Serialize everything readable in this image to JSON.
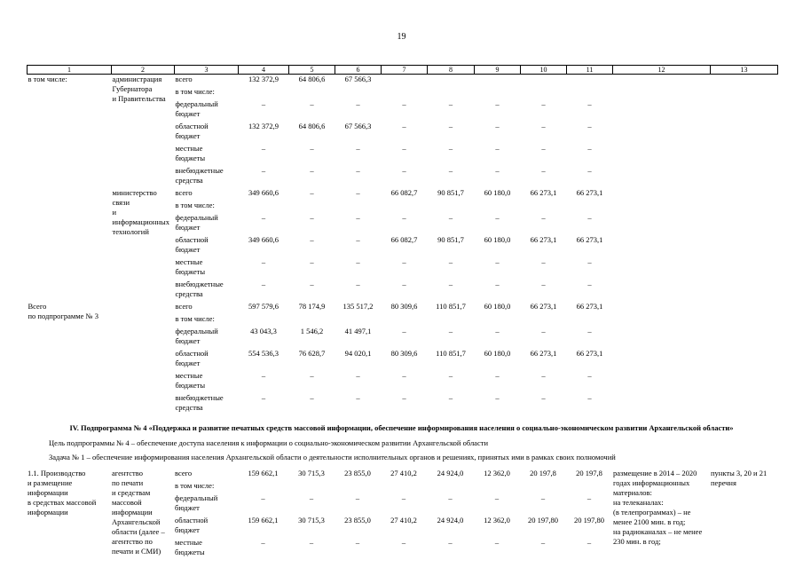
{
  "page_number": "19",
  "table": {
    "columns": [
      "1",
      "2",
      "3",
      "4",
      "5",
      "6",
      "7",
      "8",
      "9",
      "10",
      "11",
      "12",
      "13"
    ],
    "upper_blocks": [
      {
        "c1": "в том числе:",
        "c2": "администрация\nГубернатора\nи Правительства",
        "rows": [
          {
            "label": "всего",
            "values": [
              "132 372,9",
              "64 806,6",
              "67 566,3",
              "",
              "",
              "",
              "",
              ""
            ]
          },
          {
            "label": "в том числе:",
            "values": [
              "",
              "",
              "",
              "",
              "",
              "",
              "",
              ""
            ]
          },
          {
            "label": "федеральный\nбюджет",
            "values": [
              "–",
              "–",
              "–",
              "–",
              "–",
              "–",
              "–",
              "–"
            ]
          },
          {
            "label": "областной\nбюджет",
            "values": [
              "132 372,9",
              "64 806,6",
              "67 566,3",
              "–",
              "–",
              "–",
              "–",
              "–"
            ]
          },
          {
            "label": "местные\nбюджеты",
            "values": [
              "–",
              "–",
              "–",
              "–",
              "–",
              "–",
              "–",
              "–"
            ]
          },
          {
            "label": "внебюджетные\nсредства",
            "values": [
              "–",
              "–",
              "–",
              "–",
              "–",
              "–",
              "–",
              "–"
            ]
          }
        ],
        "c12": "",
        "c13": ""
      },
      {
        "c1": "",
        "c2": "министерство\nсвязи\nи информационных\nтехнологий",
        "rows": [
          {
            "label": "всего",
            "values": [
              "349 660,6",
              "–",
              "–",
              "66 082,7",
              "90 851,7",
              "60 180,0",
              "66 273,1",
              "66 273,1"
            ]
          },
          {
            "label": "в том числе:",
            "values": [
              "",
              "",
              "",
              "",
              "",
              "",
              "",
              ""
            ]
          },
          {
            "label": "федеральный\nбюджет",
            "values": [
              "–",
              "–",
              "–",
              "–",
              "–",
              "–",
              "–",
              "–"
            ]
          },
          {
            "label": "областной\nбюджет",
            "values": [
              "349 660,6",
              "–",
              "–",
              "66 082,7",
              "90 851,7",
              "60 180,0",
              "66 273,1",
              "66 273,1"
            ]
          },
          {
            "label": "местные\nбюджеты",
            "values": [
              "–",
              "–",
              "–",
              "–",
              "–",
              "–",
              "–",
              "–"
            ]
          },
          {
            "label": "внебюджетные\nсредства",
            "values": [
              "–",
              "–",
              "–",
              "–",
              "–",
              "–",
              "–",
              "–"
            ]
          }
        ],
        "c12": "",
        "c13": ""
      },
      {
        "c1": "Всего\nпо подпрограмме № 3",
        "c2": "",
        "rows": [
          {
            "label": "всего",
            "values": [
              "597 579,6",
              "78 174,9",
              "135 517,2",
              "80 309,6",
              "110 851,7",
              "60 180,0",
              "66 273,1",
              "66 273,1"
            ]
          },
          {
            "label": "в том числе:",
            "values": [
              "",
              "",
              "",
              "",
              "",
              "",
              "",
              ""
            ]
          },
          {
            "label": "федеральный\nбюджет",
            "values": [
              "43 043,3",
              "1 546,2",
              "41 497,1",
              "–",
              "–",
              "–",
              "–",
              "–"
            ]
          },
          {
            "label": "областной\nбюджет",
            "values": [
              "554 536,3",
              "76 628,7",
              "94 020,1",
              "80 309,6",
              "110 851,7",
              "60 180,0",
              "66 273,1",
              "66 273,1"
            ]
          },
          {
            "label": "местные\nбюджеты",
            "values": [
              "–",
              "–",
              "–",
              "–",
              "–",
              "–",
              "–",
              "–"
            ]
          },
          {
            "label": "внебюджетные\nсредства",
            "values": [
              "–",
              "–",
              "–",
              "–",
              "–",
              "–",
              "–",
              "–"
            ]
          }
        ],
        "c12": "",
        "c13": ""
      }
    ],
    "lower_blocks": [
      {
        "c1": "1.1. Производство\nи размещение\nинформации\nв средствах массовой\nинформации",
        "c2": "агентство\nпо печати\nи средствам\nмассовой\nинформации\nАрхангельской\nобласти (далее –\nагентство по\nпечати и СМИ)",
        "rows": [
          {
            "label": "всего",
            "values": [
              "159 662,1",
              "30 715,3",
              "23 855,0",
              "27 410,2",
              "24 924,0",
              "12 362,0",
              "20 197,8",
              "20 197,8"
            ]
          },
          {
            "label": "в том числе:",
            "values": [
              "",
              "",
              "",
              "",
              "",
              "",
              "",
              ""
            ]
          },
          {
            "label": "федеральный\nбюджет",
            "values": [
              "–",
              "–",
              "–",
              "–",
              "–",
              "–",
              "–",
              "–"
            ]
          },
          {
            "label": "областной\nбюджет",
            "values": [
              "159 662,1",
              "30 715,3",
              "23 855,0",
              "27 410,2",
              "24 924,0",
              "12 362,0",
              "20 197,80",
              "20 197,80"
            ]
          },
          {
            "label": "местные\nбюджеты",
            "values": [
              "–",
              "–",
              "–",
              "–",
              "–",
              "–",
              "–",
              "–"
            ]
          }
        ],
        "c12": "размещение в 2014 – 2020\nгодах информационных\nматериалов:\nна телеканалах:\n(в телепрограммах) – не\nменее 2100 мин. в год;\nна радиоканалах – не менее\n230 мин. в год;",
        "c13": "пункты 3, 20 и 21\nперечня"
      }
    ]
  },
  "section4": {
    "heading": "IV. Подпрограмма № 4 «Поддержка и развитие печатных средств массовой информации, обеспечение информирования населения о социально-экономическом развитии Архангельской области»",
    "goal": "Цель подпрограммы № 4 – обеспечение доступа населения к информации о социально-экономическом развитии Архангельской области",
    "task": "Задача № 1 – обеспечение информирования населения Архангельской области о деятельности исполнительных органов и решениях, принятых ими в рамках своих полномочий"
  }
}
